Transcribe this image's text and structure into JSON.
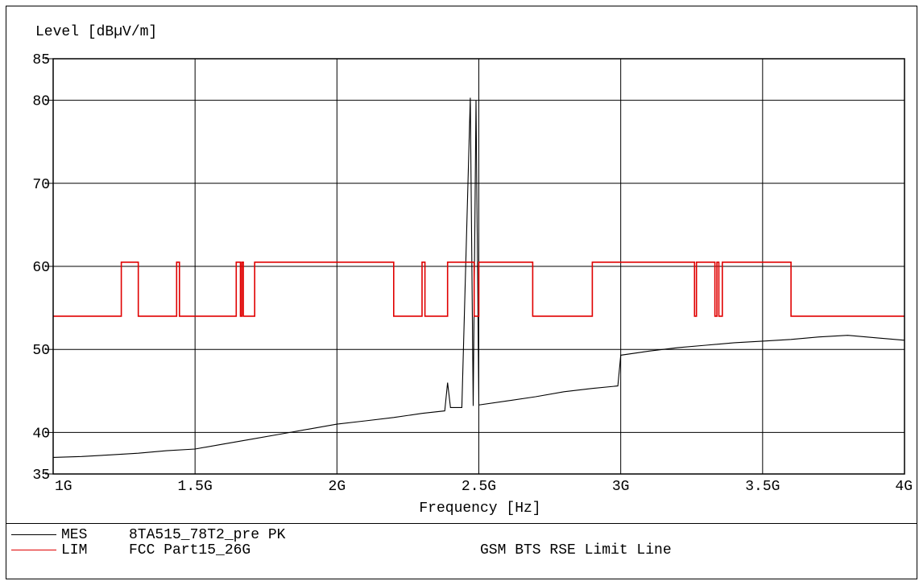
{
  "chart_data": {
    "type": "line",
    "ylabel": "Level [dBµV/m]",
    "xlabel": "Frequency [Hz]",
    "xlim": [
      1000000000,
      4000000000
    ],
    "ylim": [
      35,
      85
    ],
    "x_ticks": [
      {
        "value": 1000000000,
        "label": "1G"
      },
      {
        "value": 1500000000,
        "label": "1.5G"
      },
      {
        "value": 2000000000,
        "label": "2G"
      },
      {
        "value": 2500000000,
        "label": "2.5G"
      },
      {
        "value": 3000000000,
        "label": "3G"
      },
      {
        "value": 3500000000,
        "label": "3.5G"
      },
      {
        "value": 4000000000,
        "label": "4G"
      }
    ],
    "y_ticks": [
      {
        "value": 35,
        "label": "35"
      },
      {
        "value": 40,
        "label": "40"
      },
      {
        "value": 50,
        "label": "50"
      },
      {
        "value": 60,
        "label": "60"
      },
      {
        "value": 70,
        "label": "70"
      },
      {
        "value": 80,
        "label": "80"
      },
      {
        "value": 85,
        "label": "85"
      }
    ],
    "grid": true,
    "series": [
      {
        "name": "MES",
        "color": "#000000",
        "x": [
          1000000000,
          1100000000,
          1200000000,
          1300000000,
          1400000000,
          1500000000,
          1600000000,
          1700000000,
          1800000000,
          1900000000,
          2000000000,
          2100000000,
          2200000000,
          2300000000,
          2380000000,
          2390000000,
          2400000000,
          2440000000,
          2470000000,
          2480000000,
          2490000000,
          2500000000,
          2600000000,
          2700000000,
          2800000000,
          2900000000,
          2990000000,
          3000000000,
          3100000000,
          3200000000,
          3300000000,
          3400000000,
          3500000000,
          3600000000,
          3700000000,
          3800000000,
          3900000000,
          4000000000
        ],
        "values": [
          37.0,
          37.1,
          37.3,
          37.5,
          37.8,
          38.0,
          38.6,
          39.2,
          39.8,
          40.4,
          41.0,
          41.4,
          41.8,
          42.3,
          42.6,
          46.0,
          43.0,
          43.0,
          80.3,
          43.2,
          80.0,
          43.3,
          43.8,
          44.3,
          44.9,
          45.3,
          45.6,
          49.3,
          49.8,
          50.2,
          50.5,
          50.8,
          51.0,
          51.2,
          51.5,
          51.7,
          51.4,
          51.1
        ]
      },
      {
        "name": "LIM",
        "color": "#e00000",
        "x": [
          1000000000,
          1240000000,
          1240000000,
          1300000000,
          1300000000,
          1435000000,
          1435000000,
          1445000000,
          1445000000,
          1645000000,
          1645000000,
          1660000000,
          1660000000,
          1665000000,
          1665000000,
          1670000000,
          1670000000,
          1710000000,
          1710000000,
          1720000000,
          1720000000,
          2200000000,
          2200000000,
          2300000000,
          2300000000,
          2310000000,
          2310000000,
          2390000000,
          2390000000,
          2483500000,
          2483500000,
          2500000000,
          2500000000,
          2690000000,
          2690000000,
          2900000000,
          2900000000,
          3260000000,
          3260000000,
          3267000000,
          3267000000,
          3332000000,
          3332000000,
          3339000000,
          3339000000,
          3345800000,
          3345800000,
          3358000000,
          3358000000,
          3600000000,
          3600000000,
          4000000000
        ],
        "values": [
          54,
          54,
          60.5,
          60.5,
          54,
          54,
          60.5,
          60.5,
          54,
          54,
          60.5,
          60.5,
          54,
          54,
          60.5,
          60.5,
          54,
          54,
          60.5,
          60.5,
          60.5,
          60.5,
          54,
          54,
          60.5,
          60.5,
          54,
          54,
          60.5,
          60.5,
          54,
          54,
          60.5,
          60.5,
          54,
          54,
          60.5,
          60.5,
          54,
          54,
          60.5,
          60.5,
          54,
          54,
          60.5,
          60.5,
          54,
          54,
          60.5,
          60.5,
          54,
          54
        ]
      }
    ]
  },
  "legend": [
    {
      "tag": "MES",
      "name": "8TA515_78T2_pre PK",
      "note": "",
      "color": "#000000"
    },
    {
      "tag": "LIM",
      "name": "FCC Part15_26G",
      "note": "GSM BTS RSE Limit Line",
      "color": "#e00000"
    }
  ]
}
